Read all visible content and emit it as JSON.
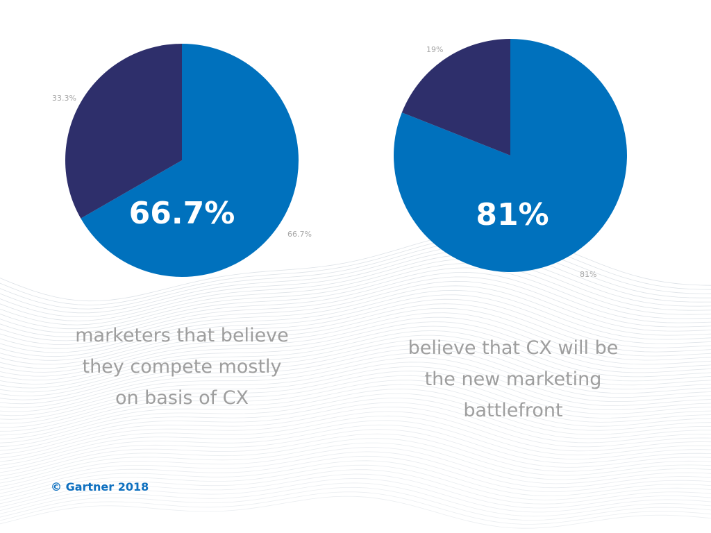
{
  "colors": {
    "primary": "#0071BD",
    "secondary": "#2E2F6B",
    "caption_text": "#9E9E9E",
    "slice_label_text": "#A6A6A6",
    "source_text": "#0D6FBF",
    "background_lines": "#D6DCE2"
  },
  "chart_data": [
    {
      "type": "pie",
      "title": "",
      "center_label": "66.7%",
      "slices": [
        {
          "label": "66.7%",
          "value": 66.7
        },
        {
          "label": "33.3%",
          "value": 33.3
        }
      ]
    },
    {
      "type": "pie",
      "title": "",
      "center_label": "81%",
      "slices": [
        {
          "label": "81%",
          "value": 81
        },
        {
          "label": "19%",
          "value": 19
        }
      ]
    }
  ],
  "captions": [
    {
      "lines": [
        "marketers that believe",
        "they compete mostly",
        "on basis of CX"
      ]
    },
    {
      "lines": [
        "believe that CX will be",
        "the new marketing",
        "battlefront"
      ]
    }
  ],
  "source": "© Gartner 2018"
}
